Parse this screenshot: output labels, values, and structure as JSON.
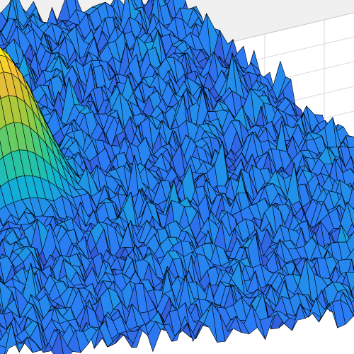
{
  "chart_data": {
    "type": "surface",
    "title": "",
    "xlabel": "",
    "ylabel": "",
    "zlabel": "",
    "grid": true,
    "colormap": "parula",
    "edge_color": "#000000",
    "pane_color": "#f0f0f0",
    "background_color": "#ffffff",
    "grid_color": "#d9d9d9",
    "noise_floor": {
      "mean": 0.15,
      "spread": 0.1
    },
    "peak": {
      "x": 0,
      "y": 0,
      "height": 1.0,
      "width": 0.12
    },
    "series": [
      {
        "values_description": "",
        "x_range": [
          -1,
          1
        ],
        "y_range": [
          -1,
          1
        ]
      }
    ]
  }
}
